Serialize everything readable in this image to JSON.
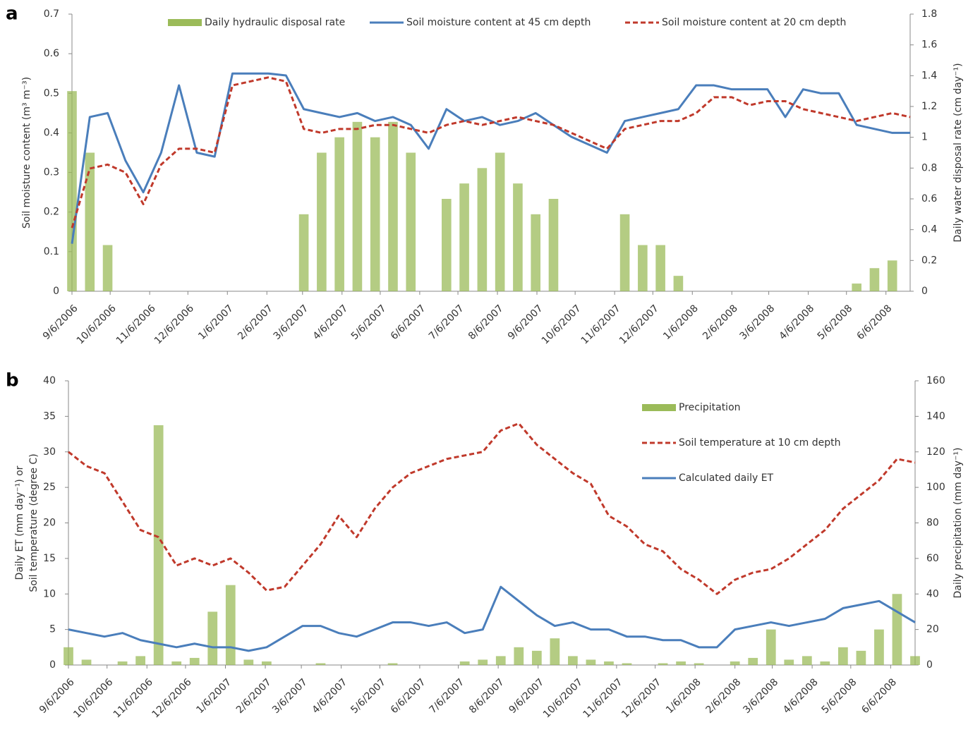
{
  "chart_data": [
    {
      "type": "combo",
      "panel_label": "a",
      "ylabel": [
        "Soil moisture content (m³ m⁻³)"
      ],
      "y2label": [
        "Daily water disposal rate (cm day⁻¹)"
      ],
      "legend": "top",
      "xlim": [
        "9/6/2006",
        "6/25/2008"
      ],
      "xticks": [
        "9/6/2006",
        "10/6/2006",
        "11/6/2006",
        "12/6/2006",
        "1/6/2007",
        "2/6/2007",
        "3/6/2007",
        "4/6/2007",
        "5/6/2007",
        "6/6/2007",
        "7/6/2007",
        "8/6/2007",
        "9/6/2007",
        "10/6/2007",
        "11/6/2007",
        "12/6/2007",
        "1/6/2008",
        "2/6/2008",
        "3/6/2008",
        "4/6/2008",
        "5/6/2008",
        "6/6/2008"
      ],
      "ylim": [
        0,
        0.7
      ],
      "yticks": [
        0,
        0.1,
        0.2,
        0.3,
        0.4,
        0.5,
        0.6,
        0.7
      ],
      "y2lim": [
        0,
        1.8
      ],
      "y2ticks": [
        0,
        0.2,
        0.4,
        0.6,
        0.8,
        1,
        1.2,
        1.4,
        1.6,
        1.8
      ],
      "x": [
        "9/6/2006",
        "9/20/2006",
        "10/4/2006",
        "10/18/2006",
        "11/1/2006",
        "11/15/2006",
        "11/29/2006",
        "12/13/2006",
        "12/27/2006",
        "1/10/2007",
        "1/24/2007",
        "2/7/2007",
        "2/21/2007",
        "3/7/2007",
        "3/21/2007",
        "4/4/2007",
        "4/18/2007",
        "5/2/2007",
        "5/16/2007",
        "5/30/2007",
        "6/13/2007",
        "6/27/2007",
        "7/11/2007",
        "7/25/2007",
        "8/8/2007",
        "8/22/2007",
        "9/5/2007",
        "9/19/2007",
        "10/3/2007",
        "10/17/2007",
        "10/31/2007",
        "11/14/2007",
        "11/28/2007",
        "12/12/2007",
        "12/26/2007",
        "1/9/2008",
        "1/23/2008",
        "2/6/2008",
        "2/20/2008",
        "3/5/2008",
        "3/19/2008",
        "4/2/2008",
        "4/16/2008",
        "4/30/2008",
        "5/14/2008",
        "5/28/2008",
        "6/11/2008",
        "6/25/2008"
      ],
      "series": [
        {
          "name": "Daily hydraulic disposal rate",
          "type": "bar",
          "axis": "y2",
          "color": "#9bbb59",
          "values": [
            1.3,
            0.9,
            0.3,
            0,
            0,
            0,
            0,
            0,
            0,
            0,
            0,
            0,
            0,
            0.5,
            0.9,
            1.0,
            1.1,
            1.0,
            1.1,
            0.9,
            0,
            0.6,
            0.7,
            0.8,
            0.9,
            0.7,
            0.5,
            0.6,
            0,
            0,
            0,
            0.5,
            0.3,
            0.3,
            0.1,
            0,
            0,
            0,
            0,
            0,
            0,
            0,
            0,
            0,
            0.05,
            0.15,
            0.2,
            0
          ]
        },
        {
          "name": "Soil moisture content at 45 cm depth",
          "type": "line",
          "color": "#4a7ebb",
          "style": "solid",
          "values": [
            0.12,
            0.44,
            0.45,
            0.33,
            0.25,
            0.35,
            0.52,
            0.35,
            0.34,
            0.55,
            0.55,
            0.55,
            0.545,
            0.46,
            0.45,
            0.44,
            0.45,
            0.43,
            0.44,
            0.42,
            0.36,
            0.46,
            0.43,
            0.44,
            0.42,
            0.43,
            0.45,
            0.42,
            0.39,
            0.37,
            0.35,
            0.43,
            0.44,
            0.45,
            0.46,
            0.52,
            0.52,
            0.51,
            0.51,
            0.51,
            0.44,
            0.51,
            0.5,
            0.5,
            0.42,
            0.41,
            0.4,
            0.4
          ]
        },
        {
          "name": "Soil moisture content at 20 cm depth",
          "type": "line",
          "color": "#c0392b",
          "style": "dashed",
          "values": [
            0.16,
            0.31,
            0.32,
            0.3,
            0.22,
            0.32,
            0.36,
            0.36,
            0.35,
            0.52,
            0.53,
            0.54,
            0.53,
            0.41,
            0.4,
            0.41,
            0.41,
            0.42,
            0.42,
            0.41,
            0.4,
            0.42,
            0.43,
            0.42,
            0.43,
            0.44,
            0.43,
            0.42,
            0.4,
            0.38,
            0.36,
            0.41,
            0.42,
            0.43,
            0.43,
            0.45,
            0.49,
            0.49,
            0.47,
            0.48,
            0.48,
            0.46,
            0.45,
            0.44,
            0.43,
            0.44,
            0.45,
            0.44
          ]
        }
      ]
    },
    {
      "type": "combo",
      "panel_label": "b",
      "ylabel": [
        "Daily ET (mm day⁻¹) or",
        "Soil temperature (degree C)"
      ],
      "y2label": [
        "Daily precipitation (mm day⁻¹)"
      ],
      "legend": "right",
      "xlim": [
        "9/6/2006",
        "6/25/2008"
      ],
      "xticks": [
        "9/6/2006",
        "10/6/2006",
        "11/6/2006",
        "12/6/2006",
        "1/6/2007",
        "2/6/2007",
        "3/6/2007",
        "4/6/2007",
        "5/6/2007",
        "6/6/2007",
        "7/6/2007",
        "8/6/2007",
        "9/6/2007",
        "10/6/2007",
        "11/6/2007",
        "12/6/2007",
        "1/6/2008",
        "2/6/2008",
        "3/6/2008",
        "4/6/2008",
        "5/6/2008",
        "6/6/2008"
      ],
      "ylim": [
        0,
        40
      ],
      "yticks": [
        0,
        5,
        10,
        15,
        20,
        25,
        30,
        35,
        40
      ],
      "y2lim": [
        0,
        160
      ],
      "y2ticks": [
        0,
        20,
        40,
        60,
        80,
        100,
        120,
        140,
        160
      ],
      "x": [
        "9/6/2006",
        "9/20/2006",
        "10/4/2006",
        "10/18/2006",
        "11/1/2006",
        "11/15/2006",
        "11/29/2006",
        "12/13/2006",
        "12/27/2006",
        "1/10/2007",
        "1/24/2007",
        "2/7/2007",
        "2/21/2007",
        "3/7/2007",
        "3/21/2007",
        "4/4/2007",
        "4/18/2007",
        "5/2/2007",
        "5/16/2007",
        "5/30/2007",
        "6/13/2007",
        "6/27/2007",
        "7/11/2007",
        "7/25/2007",
        "8/8/2007",
        "8/22/2007",
        "9/5/2007",
        "9/19/2007",
        "10/3/2007",
        "10/17/2007",
        "10/31/2007",
        "11/14/2007",
        "11/28/2007",
        "12/12/2007",
        "12/26/2007",
        "1/9/2008",
        "1/23/2008",
        "2/6/2008",
        "2/20/2008",
        "3/5/2008",
        "3/19/2008",
        "4/2/2008",
        "4/16/2008",
        "4/30/2008",
        "5/14/2008",
        "5/28/2008",
        "6/11/2008",
        "6/25/2008"
      ],
      "series": [
        {
          "name": "Precipitation",
          "type": "bar",
          "axis": "y2",
          "color": "#9bbb59",
          "values": [
            10,
            3,
            0,
            2,
            5,
            135,
            2,
            4,
            30,
            45,
            3,
            2,
            0,
            0,
            1,
            0,
            0,
            0,
            1,
            0,
            0,
            0,
            2,
            3,
            5,
            10,
            8,
            15,
            5,
            3,
            2,
            1,
            0,
            1,
            2,
            1,
            0,
            2,
            4,
            20,
            3,
            5,
            2,
            10,
            8,
            20,
            40,
            5
          ]
        },
        {
          "name": "Soil temperature at 10 cm depth",
          "type": "line",
          "color": "#c0392b",
          "style": "dashed",
          "values": [
            30,
            28,
            27,
            23,
            19,
            18,
            14,
            15,
            14,
            15,
            13,
            10.5,
            11,
            14,
            17,
            21,
            18,
            22,
            25,
            27,
            28,
            29,
            29.5,
            30,
            33,
            34,
            31,
            29,
            27,
            25.5,
            21,
            19.5,
            17,
            16,
            13.5,
            12,
            10,
            12,
            13,
            13.5,
            15,
            17,
            19,
            22,
            24,
            26,
            29,
            28.5
          ]
        },
        {
          "name": "Calculated daily ET",
          "type": "line",
          "color": "#4a7ebb",
          "style": "solid",
          "values": [
            5,
            4.5,
            4,
            4.5,
            3.5,
            3,
            2.5,
            3,
            2.5,
            2.5,
            2,
            2.5,
            4,
            5.5,
            5.5,
            4.5,
            4,
            5,
            6,
            6,
            5.5,
            6,
            4.5,
            5,
            11,
            9,
            7,
            5.5,
            6,
            5,
            5,
            4,
            4,
            3.5,
            3.5,
            2.5,
            2.5,
            5,
            5.5,
            6,
            5.5,
            6,
            6.5,
            8,
            8.5,
            9,
            7.5,
            6
          ]
        }
      ]
    }
  ]
}
